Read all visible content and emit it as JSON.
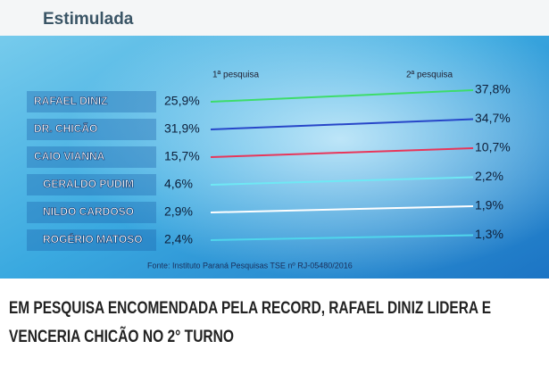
{
  "chart_data": {
    "type": "slope",
    "title": "Estimulada",
    "categories": [
      "1ª pesquisa",
      "2ª pesquisa"
    ],
    "series": [
      {
        "name": "RAFAEL DINIZ",
        "color": "#3ddc6a",
        "values": [
          25.9,
          37.8
        ],
        "value_labels": [
          "25,9%",
          "37,8%"
        ]
      },
      {
        "name": "DR. CHICÃO",
        "color": "#2746c8",
        "values": [
          31.9,
          34.7
        ],
        "value_labels": [
          "31,9%",
          "34,7%"
        ]
      },
      {
        "name": "CAIO VIANNA",
        "color": "#e8365a",
        "values": [
          15.7,
          10.7
        ],
        "value_labels": [
          "15,7%",
          "10,7%"
        ]
      },
      {
        "name": "GERALDO PUDIM",
        "color": "#6fe8f4",
        "values": [
          4.6,
          2.2
        ],
        "value_labels": [
          "4,6%",
          "2,2%"
        ]
      },
      {
        "name": "NILDO CARDOSO",
        "color": "#ffffff",
        "values": [
          2.9,
          1.9
        ],
        "value_labels": [
          "2,9%",
          "1,9%"
        ]
      },
      {
        "name": "ROGÉRIO MATOSO",
        "color": "#4fd6ec",
        "values": [
          2.4,
          1.3
        ],
        "value_labels": [
          "2,4%",
          "1,3%"
        ]
      }
    ],
    "source": "Fonte: Instituto Paraná Pesquisas TSE nº RJ-05480/2016"
  },
  "headline": [
    "EM PESQUISA ENCOMENDADA PELA RECORD, RAFAEL DINIZ LIDERA E",
    "VENCERIA CHICÃO NO 2° TURNO"
  ]
}
